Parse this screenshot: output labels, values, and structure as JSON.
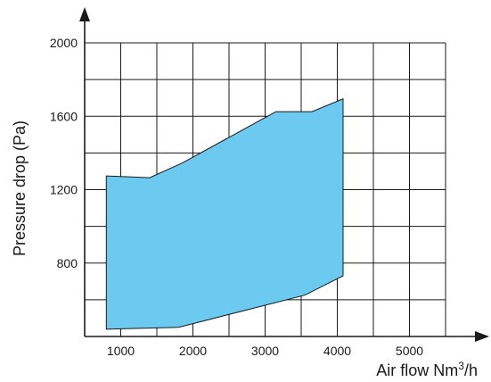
{
  "chart_data": {
    "type": "area",
    "xlabel": "Air flow Nm3/h",
    "xlabel_parts": {
      "main": "Air flow Nm",
      "sup": "3",
      "tail": "/h"
    },
    "ylabel": "Pressure drop (Pa)",
    "x_tick_labels": [
      "1000",
      "2000",
      "3000",
      "4000",
      "5000"
    ],
    "y_tick_labels": [
      "800",
      "1200",
      "1600",
      "2000"
    ],
    "xlim": [
      500,
      5500
    ],
    "ylim": [
      400,
      2000
    ],
    "x_grid_step": 500,
    "y_grid_step": 200,
    "grid": true,
    "fill_color": "#6ccaf0",
    "series": [
      {
        "polygon": [
          {
            "x": 800,
            "y": 1275
          },
          {
            "x": 1400,
            "y": 1265
          },
          {
            "x": 1850,
            "y": 1345
          },
          {
            "x": 3150,
            "y": 1625
          },
          {
            "x": 3650,
            "y": 1625
          },
          {
            "x": 4080,
            "y": 1695
          },
          {
            "x": 4080,
            "y": 730
          },
          {
            "x": 3550,
            "y": 625
          },
          {
            "x": 1800,
            "y": 450
          },
          {
            "x": 800,
            "y": 440
          }
        ]
      }
    ]
  }
}
